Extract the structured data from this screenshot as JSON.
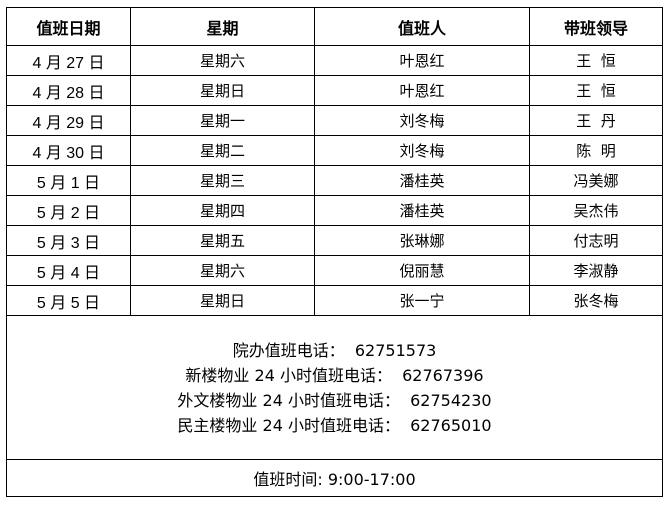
{
  "headers": [
    "值班日期",
    "星期",
    "值班人",
    "带班领导"
  ],
  "rows": [
    {
      "date": "4 月 27 日",
      "weekday": "星期六",
      "staff": "叶恩红",
      "leader": "王  恒"
    },
    {
      "date": "4 月 28 日",
      "weekday": "星期日",
      "staff": "叶恩红",
      "leader": "王  恒"
    },
    {
      "date": "4 月 29 日",
      "weekday": "星期一",
      "staff": "刘冬梅",
      "leader": "王  丹"
    },
    {
      "date": "4 月 30 日",
      "weekday": "星期二",
      "staff": "刘冬梅",
      "leader": "陈  明"
    },
    {
      "date": "5 月 1 日",
      "weekday": "星期三",
      "staff": "潘桂英",
      "leader": "冯美娜"
    },
    {
      "date": "5 月 2 日",
      "weekday": "星期四",
      "staff": "潘桂英",
      "leader": "吴杰伟"
    },
    {
      "date": "5 月 3 日",
      "weekday": "星期五",
      "staff": "张琳娜",
      "leader": "付志明"
    },
    {
      "date": "5 月 4 日",
      "weekday": "星期六",
      "staff": "倪丽慧",
      "leader": "李淑静"
    },
    {
      "date": "5 月 5 日",
      "weekday": "星期日",
      "staff": "张一宁",
      "leader": "张冬梅"
    }
  ],
  "contacts": [
    "院办值班电话：  62751573",
    "新楼物业 24 小时值班电话：  62767396",
    "外文楼物业 24 小时值班电话：  62754230",
    "民主楼物业 24 小时值班电话：  62765010"
  ],
  "footer": "值班时间: 9:00-17:00"
}
